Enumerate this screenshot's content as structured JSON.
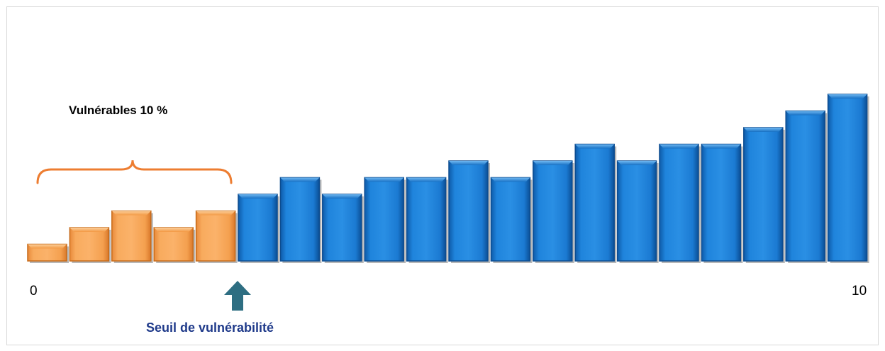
{
  "chart_data": {
    "type": "bar",
    "title": "",
    "xlabel": "",
    "ylabel": "",
    "axis_tick_labels": {
      "min": "0",
      "max": "10"
    },
    "values": [
      1,
      2,
      3,
      2,
      3,
      4,
      5,
      4,
      5,
      5,
      6,
      5,
      6,
      7,
      6,
      7,
      7,
      8,
      9,
      10
    ],
    "ylim": [
      0,
      11
    ],
    "highlight_count": 5,
    "colors": {
      "highlight_fill": "#f7a04b",
      "highlight_edge": "#c66a19",
      "default_fill": "#1a78d0",
      "default_edge": "#0d4c8f",
      "brace": "#ed7d31",
      "arrow": "#2e6e82"
    },
    "annotations": {
      "group_label": "Vulnérables 10 %",
      "threshold_label": "Seuil de vulnérabilité"
    },
    "grid": false,
    "legend": "none"
  }
}
